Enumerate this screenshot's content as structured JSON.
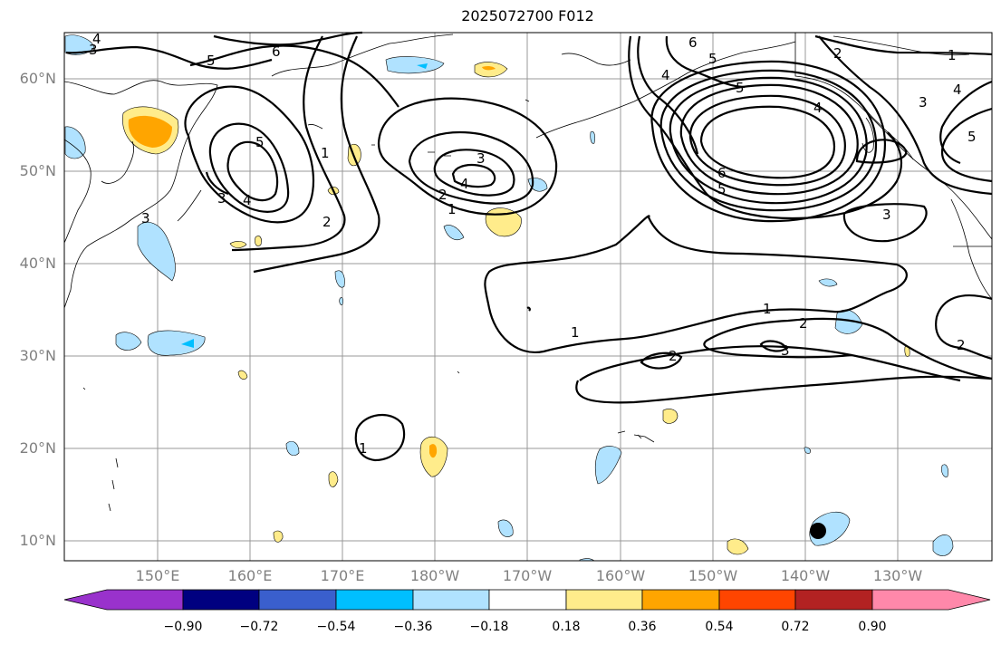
{
  "title": "2025072700 F012",
  "lat_labels": [
    "60°N",
    "50°N",
    "40°N",
    "30°N",
    "20°N",
    "10°N"
  ],
  "lon_labels": [
    "150°E",
    "160°E",
    "170°E",
    "180°W",
    "170°W",
    "160°W",
    "150°W",
    "140°W",
    "130°W"
  ],
  "colorbar": {
    "ticks": [
      "−0.90",
      "−0.72",
      "−0.54",
      "−0.36",
      "−0.18",
      "0.18",
      "0.36",
      "0.54",
      "0.72",
      "0.90"
    ],
    "colors": [
      "#9932cc",
      "#000080",
      "#3a5fcd",
      "#00bfff",
      "#b0e2ff",
      "#ffffff",
      "#ffec8b",
      "#ffa500",
      "#ff4500",
      "#b22222",
      "#ff88aa"
    ]
  },
  "contour_labels": [
    "1",
    "2",
    "3",
    "4",
    "5",
    "6"
  ],
  "marker": "storm-position-dot"
}
